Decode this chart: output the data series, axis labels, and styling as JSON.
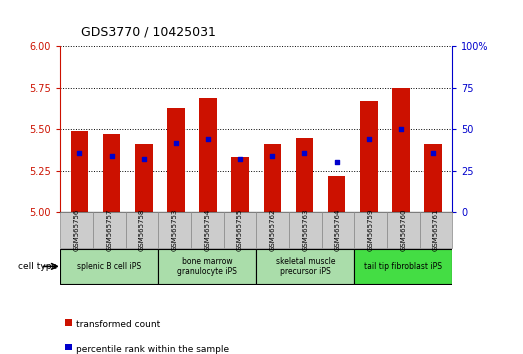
{
  "title": "GDS3770 / 10425031",
  "samples": [
    "GSM565756",
    "GSM565757",
    "GSM565758",
    "GSM565753",
    "GSM565754",
    "GSM565755",
    "GSM565762",
    "GSM565763",
    "GSM565764",
    "GSM565759",
    "GSM565760",
    "GSM565761"
  ],
  "red_values": [
    5.49,
    5.47,
    5.41,
    5.63,
    5.69,
    5.33,
    5.41,
    5.45,
    5.22,
    5.67,
    5.75,
    5.41
  ],
  "blue_values": [
    36,
    34,
    32,
    42,
    44,
    32,
    34,
    36,
    30,
    44,
    50,
    36
  ],
  "ylim": [
    5.0,
    6.0
  ],
  "y2lim": [
    0,
    100
  ],
  "yticks": [
    5.0,
    5.25,
    5.5,
    5.75,
    6.0
  ],
  "y2ticks": [
    0,
    25,
    50,
    75,
    100
  ],
  "bar_color": "#cc1100",
  "dot_color": "#0000cc",
  "background_color": "#ffffff",
  "cell_type_groups": [
    {
      "label": "splenic B cell iPS",
      "start": 0,
      "end": 3
    },
    {
      "label": "bone marrow\ngranulocyte iPS",
      "start": 3,
      "end": 6
    },
    {
      "label": "skeletal muscle\nprecursor iPS",
      "start": 6,
      "end": 9
    },
    {
      "label": "tail tip fibroblast iPS",
      "start": 9,
      "end": 12
    }
  ],
  "cell_type_bg_light": "#aaddaa",
  "cell_type_bg_bright": "#44dd44",
  "cell_type_text": "cell type",
  "legend_red": "transformed count",
  "legend_blue": "percentile rank within the sample",
  "bar_width": 0.55,
  "sample_box_color": "#cccccc",
  "plot_bg": "#ffffff"
}
